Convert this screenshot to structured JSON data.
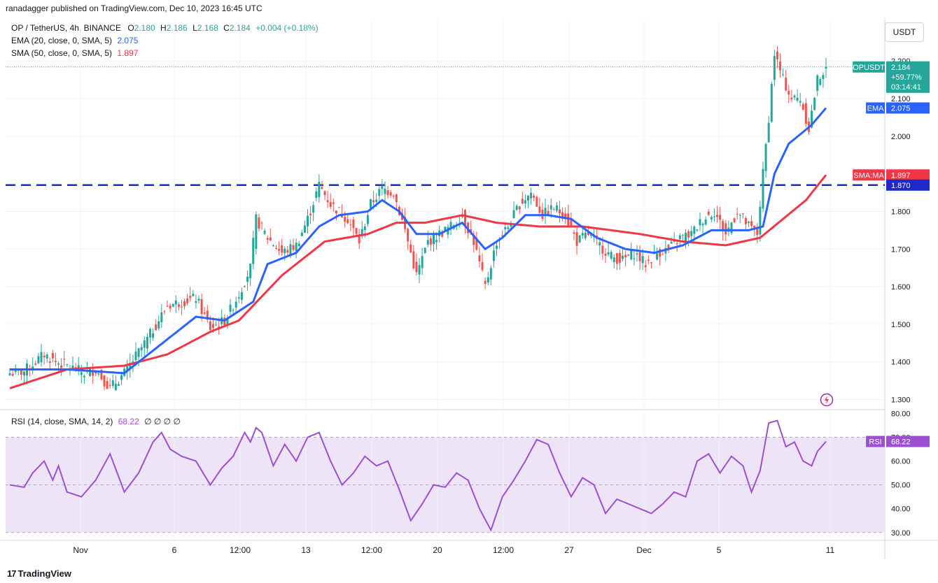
{
  "header": {
    "publisher": "ranadagger published on TradingView.com, Dec 10, 2023 16:45 UTC"
  },
  "legend": {
    "symbol": "OP / TetherUS, 4h, BINANCE",
    "ohlc": {
      "O": "2.180",
      "H": "2.186",
      "L": "2.168",
      "C": "2.184",
      "change": "+0.004 (+0.18%)"
    },
    "ema": {
      "label": "EMA (20, close, 0, SMA, 5)",
      "value": "2.075"
    },
    "sma": {
      "label": "SMA (50, close, 0, SMA, 5)",
      "value": "1.897"
    },
    "rsi": {
      "label": "RSI (14, close, SMA, 14, 2)",
      "value": "68.22",
      "extras": "∅ ∅ ∅ ∅"
    }
  },
  "currency_button": "USDT",
  "footer": {
    "brand": "TradingView",
    "logo_glyph": "17"
  },
  "colors": {
    "up": "#26a69a",
    "down": "#ef5350",
    "ema": "#2962ff",
    "sma": "#f23645",
    "level": "#1f28c8",
    "rsi": "#9c4fd1",
    "rsi_band": "#ede4f7",
    "grid": "#f0f3fa"
  },
  "price_tags": {
    "symbol": {
      "label": "OPUSDT",
      "value": "2.184",
      "change": "+59.77%",
      "countdown": "03:14:41"
    },
    "ema": {
      "label": "EMA",
      "value": "2.075"
    },
    "sma": {
      "label": "SMA:MA",
      "value": "1.897"
    },
    "level": {
      "value": "1.870"
    },
    "rsi": {
      "label": "RSI",
      "value": "68.22"
    }
  },
  "chart_data": [
    {
      "type": "candlestick",
      "title": "OP / TetherUS, 4h, BINANCE",
      "x_tick_labels": [
        "Nov",
        "6",
        "12:00",
        "13",
        "12:00",
        "20",
        "12:00",
        "27",
        "Dec",
        "5",
        "11"
      ],
      "y_tick_labels": [
        "1.300",
        "1.400",
        "1.500",
        "1.600",
        "1.700",
        "1.800",
        "2.000",
        "2.100",
        "2.200"
      ],
      "ylim": [
        1.275,
        2.31
      ],
      "grid": true,
      "horizontal_level": 1.87,
      "last_price": 2.184,
      "anchors": {
        "close": [
          [
            0,
            1.37
          ],
          [
            5,
            1.375
          ],
          [
            12,
            1.42
          ],
          [
            16,
            1.4
          ],
          [
            20,
            1.39
          ],
          [
            26,
            1.37
          ],
          [
            30,
            1.38
          ],
          [
            35,
            1.33
          ],
          [
            40,
            1.37
          ],
          [
            48,
            1.46
          ],
          [
            55,
            1.55
          ],
          [
            60,
            1.56
          ],
          [
            65,
            1.57
          ],
          [
            70,
            1.49
          ],
          [
            75,
            1.51
          ],
          [
            80,
            1.58
          ],
          [
            84,
            1.65
          ],
          [
            86,
            1.78
          ],
          [
            90,
            1.73
          ],
          [
            95,
            1.69
          ],
          [
            100,
            1.71
          ],
          [
            104,
            1.78
          ],
          [
            108,
            1.87
          ],
          [
            112,
            1.82
          ],
          [
            118,
            1.78
          ],
          [
            122,
            1.72
          ],
          [
            126,
            1.82
          ],
          [
            130,
            1.86
          ],
          [
            134,
            1.85
          ],
          [
            138,
            1.75
          ],
          [
            142,
            1.63
          ],
          [
            146,
            1.72
          ],
          [
            150,
            1.74
          ],
          [
            154,
            1.76
          ],
          [
            158,
            1.79
          ],
          [
            162,
            1.72
          ],
          [
            166,
            1.6
          ],
          [
            170,
            1.72
          ],
          [
            174,
            1.76
          ],
          [
            178,
            1.82
          ],
          [
            182,
            1.85
          ],
          [
            186,
            1.79
          ],
          [
            190,
            1.81
          ],
          [
            194,
            1.79
          ],
          [
            198,
            1.72
          ],
          [
            202,
            1.74
          ],
          [
            206,
            1.71
          ],
          [
            210,
            1.68
          ],
          [
            214,
            1.67
          ],
          [
            218,
            1.69
          ],
          [
            222,
            1.66
          ],
          [
            226,
            1.69
          ],
          [
            230,
            1.7
          ],
          [
            234,
            1.73
          ],
          [
            238,
            1.74
          ],
          [
            242,
            1.78
          ],
          [
            246,
            1.8
          ],
          [
            250,
            1.74
          ],
          [
            254,
            1.8
          ],
          [
            258,
            1.76
          ],
          [
            261,
            1.74
          ],
          [
            263,
            1.9
          ],
          [
            265,
            2.05
          ],
          [
            267,
            2.22
          ],
          [
            270,
            2.15
          ],
          [
            273,
            2.1
          ],
          [
            276,
            2.1
          ],
          [
            279,
            2.02
          ],
          [
            282,
            2.15
          ],
          [
            285,
            2.184
          ]
        ],
        "ema": [
          [
            0,
            1.38
          ],
          [
            20,
            1.38
          ],
          [
            40,
            1.37
          ],
          [
            55,
            1.46
          ],
          [
            65,
            1.52
          ],
          [
            75,
            1.51
          ],
          [
            85,
            1.56
          ],
          [
            90,
            1.66
          ],
          [
            100,
            1.69
          ],
          [
            108,
            1.76
          ],
          [
            115,
            1.79
          ],
          [
            125,
            1.8
          ],
          [
            130,
            1.83
          ],
          [
            136,
            1.8
          ],
          [
            142,
            1.74
          ],
          [
            150,
            1.74
          ],
          [
            158,
            1.77
          ],
          [
            166,
            1.7
          ],
          [
            172,
            1.73
          ],
          [
            180,
            1.79
          ],
          [
            188,
            1.79
          ],
          [
            196,
            1.78
          ],
          [
            205,
            1.73
          ],
          [
            215,
            1.7
          ],
          [
            225,
            1.69
          ],
          [
            235,
            1.71
          ],
          [
            245,
            1.75
          ],
          [
            258,
            1.75
          ],
          [
            263,
            1.76
          ],
          [
            267,
            1.9
          ],
          [
            272,
            1.98
          ],
          [
            280,
            2.03
          ],
          [
            285,
            2.075
          ]
        ],
        "sma": [
          [
            0,
            1.33
          ],
          [
            20,
            1.38
          ],
          [
            40,
            1.39
          ],
          [
            55,
            1.42
          ],
          [
            70,
            1.48
          ],
          [
            80,
            1.51
          ],
          [
            95,
            1.63
          ],
          [
            110,
            1.72
          ],
          [
            125,
            1.74
          ],
          [
            135,
            1.77
          ],
          [
            145,
            1.77
          ],
          [
            158,
            1.79
          ],
          [
            170,
            1.77
          ],
          [
            185,
            1.76
          ],
          [
            200,
            1.76
          ],
          [
            210,
            1.75
          ],
          [
            220,
            1.74
          ],
          [
            235,
            1.72
          ],
          [
            250,
            1.71
          ],
          [
            262,
            1.73
          ],
          [
            270,
            1.78
          ],
          [
            278,
            1.83
          ],
          [
            285,
            1.897
          ]
        ],
        "rsi": [
          [
            0,
            50
          ],
          [
            5,
            49
          ],
          [
            8,
            55
          ],
          [
            12,
            60
          ],
          [
            15,
            52
          ],
          [
            17,
            58
          ],
          [
            20,
            47
          ],
          [
            25,
            45
          ],
          [
            30,
            52
          ],
          [
            35,
            63
          ],
          [
            40,
            47
          ],
          [
            45,
            55
          ],
          [
            50,
            68
          ],
          [
            53,
            72
          ],
          [
            56,
            65
          ],
          [
            60,
            62
          ],
          [
            65,
            60
          ],
          [
            70,
            50
          ],
          [
            74,
            57
          ],
          [
            78,
            62
          ],
          [
            82,
            72
          ],
          [
            84,
            68
          ],
          [
            86,
            74
          ],
          [
            88,
            72
          ],
          [
            92,
            58
          ],
          [
            96,
            67
          ],
          [
            100,
            60
          ],
          [
            104,
            70
          ],
          [
            108,
            72
          ],
          [
            112,
            60
          ],
          [
            116,
            50
          ],
          [
            120,
            55
          ],
          [
            124,
            62
          ],
          [
            128,
            58
          ],
          [
            132,
            60
          ],
          [
            136,
            48
          ],
          [
            140,
            35
          ],
          [
            144,
            42
          ],
          [
            148,
            50
          ],
          [
            152,
            49
          ],
          [
            156,
            55
          ],
          [
            160,
            52
          ],
          [
            164,
            40
          ],
          [
            168,
            31
          ],
          [
            172,
            45
          ],
          [
            176,
            52
          ],
          [
            180,
            60
          ],
          [
            184,
            69
          ],
          [
            188,
            67
          ],
          [
            192,
            55
          ],
          [
            196,
            45
          ],
          [
            200,
            53
          ],
          [
            204,
            50
          ],
          [
            208,
            38
          ],
          [
            212,
            44
          ],
          [
            216,
            42
          ],
          [
            220,
            40
          ],
          [
            224,
            38
          ],
          [
            228,
            42
          ],
          [
            232,
            47
          ],
          [
            236,
            45
          ],
          [
            240,
            60
          ],
          [
            244,
            63
          ],
          [
            248,
            55
          ],
          [
            252,
            62
          ],
          [
            256,
            58
          ],
          [
            259,
            47
          ],
          [
            262,
            56
          ],
          [
            265,
            76
          ],
          [
            268,
            77
          ],
          [
            271,
            66
          ],
          [
            274,
            68
          ],
          [
            277,
            60
          ],
          [
            280,
            58
          ],
          [
            282,
            64
          ],
          [
            285,
            68.22
          ]
        ]
      }
    },
    {
      "type": "line",
      "title": "RSI (14, close, SMA, 14, 2)",
      "y_tick_labels": [
        "30.00",
        "40.00",
        "50.00",
        "60.00",
        "70.00",
        "80.00"
      ],
      "ylim": [
        27,
        81
      ],
      "bands": [
        30,
        50,
        70
      ],
      "last_value": 68.22
    }
  ]
}
